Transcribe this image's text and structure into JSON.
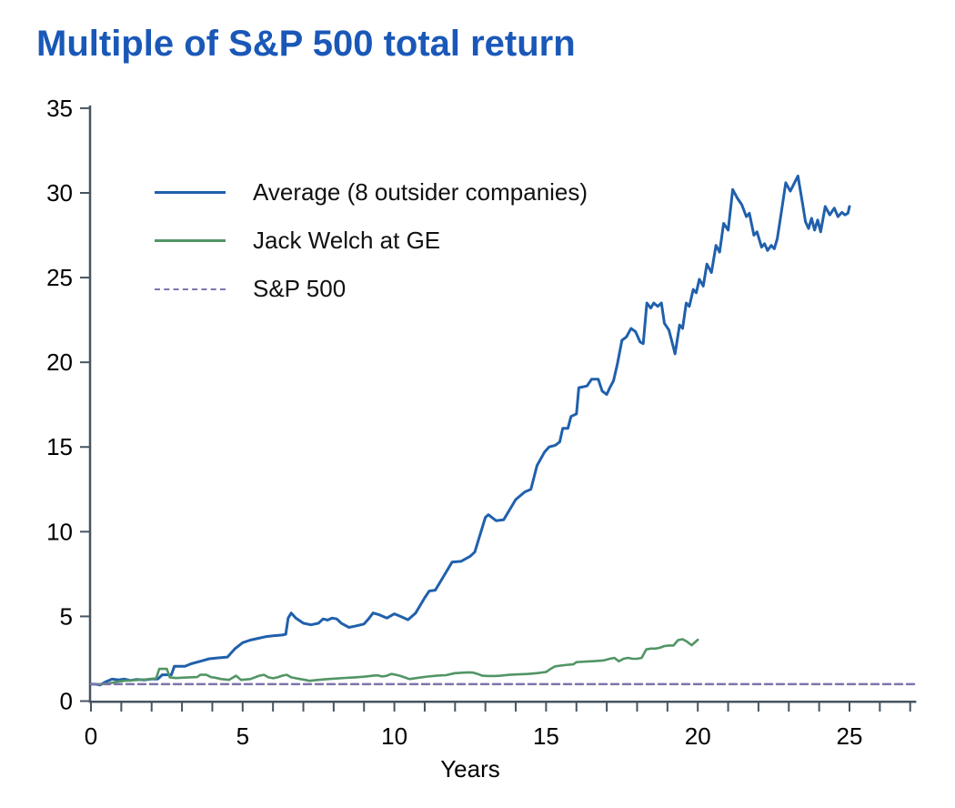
{
  "title": "Multiple of S&P 500 total return",
  "colors": {
    "title_blue": "#1a58b8",
    "axis": "#47545f",
    "average_line": "#2060ac",
    "ge_line": "#529565",
    "sp500_line": "#7d75ab",
    "background": "#ffffff"
  },
  "chart_data": {
    "type": "line",
    "title": "Multiple of S&P 500 total return",
    "xlabel": "Years",
    "ylabel": "",
    "xlim": [
      0,
      27.2
    ],
    "ylim": [
      0,
      35
    ],
    "grid": false,
    "legend_position": "upper-left-inside",
    "y_ticks": [
      0,
      5,
      10,
      15,
      20,
      25,
      30,
      35
    ],
    "x_ticks_labeled": [
      0,
      5,
      10,
      15,
      20,
      25
    ],
    "x_minor_tick_step": 1,
    "series": [
      {
        "id": "average",
        "name": "Average (8 outsider companies)",
        "color": "#2060ac",
        "style": "solid",
        "width": 3,
        "points": [
          [
            0,
            1.0
          ],
          [
            0.15,
            1.0
          ],
          [
            0.3,
            0.95
          ],
          [
            0.5,
            1.15
          ],
          [
            0.7,
            1.3
          ],
          [
            0.9,
            1.25
          ],
          [
            1.1,
            1.3
          ],
          [
            1.3,
            1.22
          ],
          [
            1.5,
            1.28
          ],
          [
            1.75,
            1.25
          ],
          [
            2.0,
            1.3
          ],
          [
            2.2,
            1.3
          ],
          [
            2.35,
            1.55
          ],
          [
            2.65,
            1.55
          ],
          [
            2.75,
            2.05
          ],
          [
            3.1,
            2.05
          ],
          [
            3.3,
            2.2
          ],
          [
            3.6,
            2.35
          ],
          [
            3.9,
            2.5
          ],
          [
            4.2,
            2.55
          ],
          [
            4.5,
            2.6
          ],
          [
            4.75,
            3.1
          ],
          [
            5.0,
            3.45
          ],
          [
            5.25,
            3.6
          ],
          [
            5.5,
            3.7
          ],
          [
            5.75,
            3.8
          ],
          [
            6.0,
            3.85
          ],
          [
            6.3,
            3.9
          ],
          [
            6.42,
            3.95
          ],
          [
            6.5,
            4.9
          ],
          [
            6.6,
            5.2
          ],
          [
            6.75,
            4.9
          ],
          [
            7.0,
            4.6
          ],
          [
            7.25,
            4.5
          ],
          [
            7.5,
            4.6
          ],
          [
            7.65,
            4.85
          ],
          [
            7.8,
            4.78
          ],
          [
            7.95,
            4.9
          ],
          [
            8.1,
            4.85
          ],
          [
            8.25,
            4.6
          ],
          [
            8.5,
            4.35
          ],
          [
            8.7,
            4.42
          ],
          [
            9.0,
            4.55
          ],
          [
            9.15,
            4.85
          ],
          [
            9.3,
            5.2
          ],
          [
            9.5,
            5.1
          ],
          [
            9.75,
            4.9
          ],
          [
            10.0,
            5.15
          ],
          [
            10.2,
            5.0
          ],
          [
            10.45,
            4.8
          ],
          [
            10.7,
            5.2
          ],
          [
            11.0,
            6.1
          ],
          [
            11.15,
            6.5
          ],
          [
            11.35,
            6.55
          ],
          [
            11.6,
            7.3
          ],
          [
            11.9,
            8.2
          ],
          [
            12.2,
            8.25
          ],
          [
            12.5,
            8.55
          ],
          [
            12.65,
            8.8
          ],
          [
            13.0,
            10.85
          ],
          [
            13.1,
            11.0
          ],
          [
            13.35,
            10.65
          ],
          [
            13.6,
            10.7
          ],
          [
            13.8,
            11.3
          ],
          [
            14.0,
            11.9
          ],
          [
            14.3,
            12.35
          ],
          [
            14.5,
            12.5
          ],
          [
            14.7,
            13.9
          ],
          [
            14.95,
            14.7
          ],
          [
            15.1,
            15.0
          ],
          [
            15.3,
            15.1
          ],
          [
            15.45,
            15.3
          ],
          [
            15.55,
            16.1
          ],
          [
            15.72,
            16.1
          ],
          [
            15.82,
            16.8
          ],
          [
            16.0,
            16.95
          ],
          [
            16.08,
            18.5
          ],
          [
            16.35,
            18.6
          ],
          [
            16.5,
            19.0
          ],
          [
            16.72,
            19.0
          ],
          [
            16.85,
            18.3
          ],
          [
            17.0,
            18.1
          ],
          [
            17.1,
            18.5
          ],
          [
            17.22,
            18.9
          ],
          [
            17.35,
            19.9
          ],
          [
            17.5,
            21.3
          ],
          [
            17.65,
            21.5
          ],
          [
            17.8,
            22.0
          ],
          [
            17.95,
            21.8
          ],
          [
            18.1,
            21.2
          ],
          [
            18.2,
            21.1
          ],
          [
            18.32,
            23.5
          ],
          [
            18.45,
            23.2
          ],
          [
            18.55,
            23.5
          ],
          [
            18.68,
            23.3
          ],
          [
            18.8,
            23.5
          ],
          [
            18.9,
            22.3
          ],
          [
            19.05,
            21.9
          ],
          [
            19.25,
            20.5
          ],
          [
            19.4,
            22.2
          ],
          [
            19.5,
            22.0
          ],
          [
            19.62,
            23.5
          ],
          [
            19.72,
            23.3
          ],
          [
            19.85,
            24.3
          ],
          [
            19.95,
            24.1
          ],
          [
            20.05,
            24.9
          ],
          [
            20.18,
            24.5
          ],
          [
            20.3,
            25.8
          ],
          [
            20.45,
            25.3
          ],
          [
            20.6,
            26.9
          ],
          [
            20.72,
            26.5
          ],
          [
            20.85,
            28.2
          ],
          [
            21.0,
            27.8
          ],
          [
            21.15,
            30.2
          ],
          [
            21.3,
            29.7
          ],
          [
            21.45,
            29.3
          ],
          [
            21.6,
            28.6
          ],
          [
            21.7,
            28.8
          ],
          [
            21.85,
            27.5
          ],
          [
            21.95,
            27.7
          ],
          [
            22.1,
            26.8
          ],
          [
            22.2,
            27.0
          ],
          [
            22.3,
            26.6
          ],
          [
            22.42,
            26.9
          ],
          [
            22.52,
            26.7
          ],
          [
            22.62,
            27.3
          ],
          [
            22.75,
            28.8
          ],
          [
            22.9,
            30.6
          ],
          [
            23.05,
            30.1
          ],
          [
            23.3,
            31.0
          ],
          [
            23.45,
            29.4
          ],
          [
            23.55,
            28.3
          ],
          [
            23.65,
            27.9
          ],
          [
            23.75,
            28.5
          ],
          [
            23.85,
            27.8
          ],
          [
            23.95,
            28.4
          ],
          [
            24.05,
            27.7
          ],
          [
            24.2,
            29.2
          ],
          [
            24.35,
            28.7
          ],
          [
            24.5,
            29.1
          ],
          [
            24.62,
            28.6
          ],
          [
            24.75,
            28.85
          ],
          [
            24.85,
            28.7
          ],
          [
            24.95,
            28.8
          ],
          [
            25.0,
            29.2
          ]
        ]
      },
      {
        "id": "ge",
        "name": "Jack Welch at GE",
        "color": "#529565",
        "style": "solid",
        "width": 2.6,
        "points": [
          [
            0,
            1.0
          ],
          [
            0.3,
            1.0
          ],
          [
            0.6,
            1.05
          ],
          [
            0.9,
            1.15
          ],
          [
            1.1,
            1.2
          ],
          [
            1.4,
            1.23
          ],
          [
            1.7,
            1.27
          ],
          [
            2.0,
            1.3
          ],
          [
            2.15,
            1.35
          ],
          [
            2.25,
            1.9
          ],
          [
            2.5,
            1.9
          ],
          [
            2.6,
            1.4
          ],
          [
            2.8,
            1.36
          ],
          [
            3.0,
            1.38
          ],
          [
            3.25,
            1.4
          ],
          [
            3.5,
            1.42
          ],
          [
            3.6,
            1.55
          ],
          [
            3.8,
            1.55
          ],
          [
            3.95,
            1.42
          ],
          [
            4.1,
            1.38
          ],
          [
            4.3,
            1.3
          ],
          [
            4.55,
            1.25
          ],
          [
            4.78,
            1.5
          ],
          [
            4.95,
            1.25
          ],
          [
            5.25,
            1.3
          ],
          [
            5.55,
            1.5
          ],
          [
            5.7,
            1.55
          ],
          [
            5.85,
            1.4
          ],
          [
            6.0,
            1.35
          ],
          [
            6.15,
            1.4
          ],
          [
            6.3,
            1.5
          ],
          [
            6.45,
            1.55
          ],
          [
            6.6,
            1.4
          ],
          [
            6.75,
            1.35
          ],
          [
            6.9,
            1.3
          ],
          [
            7.05,
            1.25
          ],
          [
            7.2,
            1.2
          ],
          [
            7.5,
            1.25
          ],
          [
            7.8,
            1.3
          ],
          [
            8.1,
            1.33
          ],
          [
            8.4,
            1.37
          ],
          [
            8.7,
            1.4
          ],
          [
            9.0,
            1.44
          ],
          [
            9.3,
            1.5
          ],
          [
            9.45,
            1.52
          ],
          [
            9.6,
            1.45
          ],
          [
            9.75,
            1.5
          ],
          [
            9.9,
            1.6
          ],
          [
            10.05,
            1.55
          ],
          [
            10.2,
            1.48
          ],
          [
            10.5,
            1.3
          ],
          [
            10.8,
            1.38
          ],
          [
            11.1,
            1.45
          ],
          [
            11.4,
            1.5
          ],
          [
            11.7,
            1.53
          ],
          [
            12.0,
            1.65
          ],
          [
            12.3,
            1.68
          ],
          [
            12.45,
            1.7
          ],
          [
            12.6,
            1.68
          ],
          [
            12.75,
            1.6
          ],
          [
            12.9,
            1.5
          ],
          [
            13.1,
            1.48
          ],
          [
            13.3,
            1.48
          ],
          [
            13.5,
            1.5
          ],
          [
            13.8,
            1.55
          ],
          [
            14.1,
            1.58
          ],
          [
            14.4,
            1.6
          ],
          [
            14.7,
            1.65
          ],
          [
            15.0,
            1.72
          ],
          [
            15.15,
            1.9
          ],
          [
            15.3,
            2.05
          ],
          [
            15.6,
            2.12
          ],
          [
            15.9,
            2.17
          ],
          [
            16.0,
            2.3
          ],
          [
            16.3,
            2.33
          ],
          [
            16.6,
            2.36
          ],
          [
            16.9,
            2.4
          ],
          [
            17.1,
            2.5
          ],
          [
            17.25,
            2.55
          ],
          [
            17.4,
            2.35
          ],
          [
            17.55,
            2.5
          ],
          [
            17.7,
            2.55
          ],
          [
            17.85,
            2.5
          ],
          [
            18.0,
            2.5
          ],
          [
            18.15,
            2.55
          ],
          [
            18.3,
            3.05
          ],
          [
            18.45,
            3.1
          ],
          [
            18.6,
            3.1
          ],
          [
            18.75,
            3.15
          ],
          [
            18.9,
            3.25
          ],
          [
            19.05,
            3.28
          ],
          [
            19.2,
            3.28
          ],
          [
            19.35,
            3.6
          ],
          [
            19.5,
            3.65
          ],
          [
            19.65,
            3.5
          ],
          [
            19.8,
            3.3
          ],
          [
            20.0,
            3.62
          ]
        ]
      },
      {
        "id": "sp500",
        "name": "S&P 500",
        "color": "#7d75ab",
        "style": "dashed",
        "width": 2.5,
        "points": [
          [
            0,
            1.0
          ],
          [
            27.2,
            1.0
          ]
        ]
      }
    ]
  }
}
